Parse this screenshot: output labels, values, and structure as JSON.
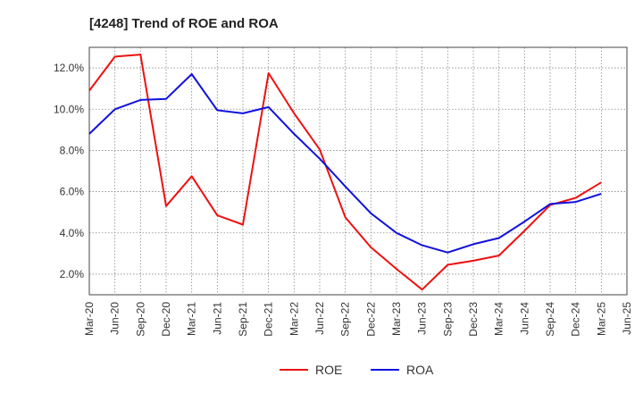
{
  "chart_data": {
    "type": "line",
    "title": "[4248]  Trend of ROE and ROA",
    "xlabel": "",
    "ylabel": "",
    "ylim": [
      1.0,
      13.0
    ],
    "yticks": [
      2.0,
      4.0,
      6.0,
      8.0,
      10.0,
      12.0
    ],
    "ytick_labels": [
      "2.0%",
      "4.0%",
      "6.0%",
      "8.0%",
      "10.0%",
      "12.0%"
    ],
    "grid": true,
    "legend_position": "bottom-center",
    "categories": [
      "Mar-20",
      "Jun-20",
      "Sep-20",
      "Dec-20",
      "Mar-21",
      "Jun-21",
      "Sep-21",
      "Dec-21",
      "Mar-22",
      "Jun-22",
      "Sep-22",
      "Dec-22",
      "Mar-23",
      "Jun-23",
      "Sep-23",
      "Dec-23",
      "Mar-24",
      "Jun-24",
      "Sep-24",
      "Dec-24",
      "Mar-25",
      "Jun-25"
    ],
    "series": [
      {
        "name": "ROE",
        "color": "#ee1111",
        "values": [
          10.9,
          12.55,
          12.65,
          5.3,
          6.75,
          4.85,
          4.4,
          11.75,
          9.8,
          8.05,
          4.75,
          3.3,
          2.25,
          1.25,
          2.45,
          2.65,
          2.9,
          4.1,
          5.35,
          5.7,
          6.45,
          null
        ]
      },
      {
        "name": "ROA",
        "color": "#1111dd",
        "values": [
          8.8,
          10.0,
          10.45,
          10.5,
          11.7,
          9.95,
          9.8,
          10.1,
          8.8,
          7.6,
          6.25,
          4.95,
          4.0,
          3.4,
          3.05,
          3.45,
          3.75,
          4.55,
          5.4,
          5.5,
          5.9,
          null
        ]
      }
    ]
  }
}
